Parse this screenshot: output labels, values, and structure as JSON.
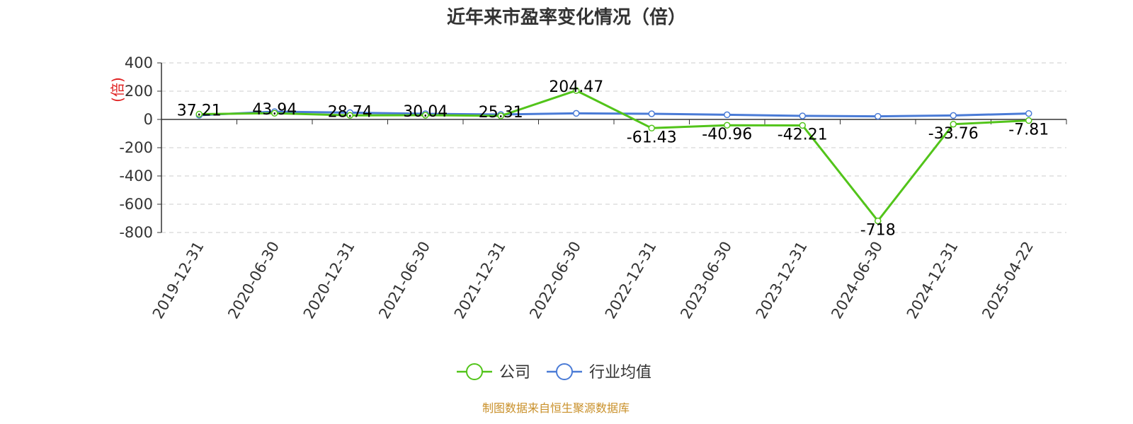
{
  "chart_data": {
    "type": "line",
    "title": "近年来市盈率变化情况（倍）",
    "ylabel": "(倍)",
    "xlabel": "",
    "ylim": [
      -800,
      400
    ],
    "yticks": [
      400,
      200,
      0,
      -200,
      -400,
      -600,
      -800
    ],
    "grid": true,
    "legend_position": "bottom-center",
    "categories": [
      "2019-12-31",
      "2020-06-30",
      "2020-12-31",
      "2021-06-30",
      "2021-12-31",
      "2022-06-30",
      "2022-12-31",
      "2023-06-30",
      "2023-12-31",
      "2024-06-30",
      "2024-12-31",
      "2025-04-22"
    ],
    "series": [
      {
        "name": "公司",
        "color": "#52c41a",
        "values": [
          37.21,
          43.94,
          28.74,
          30.04,
          25.31,
          204.47,
          -61.43,
          -40.96,
          -42.21,
          -718,
          -33.76,
          -7.81
        ],
        "labels": [
          "37.21",
          "43.94",
          "28.74",
          "30.04",
          "25.31",
          "204.47",
          "-61.43",
          "-40.96",
          "-42.21",
          "-718",
          "-33.76",
          "-7.81"
        ]
      },
      {
        "name": "行业均值",
        "color": "#4a7bd6",
        "values": [
          30,
          55,
          48,
          40,
          35,
          43,
          40,
          33,
          25,
          22,
          28,
          42
        ]
      }
    ],
    "source": "制图数据来自恒生聚源数据库"
  }
}
